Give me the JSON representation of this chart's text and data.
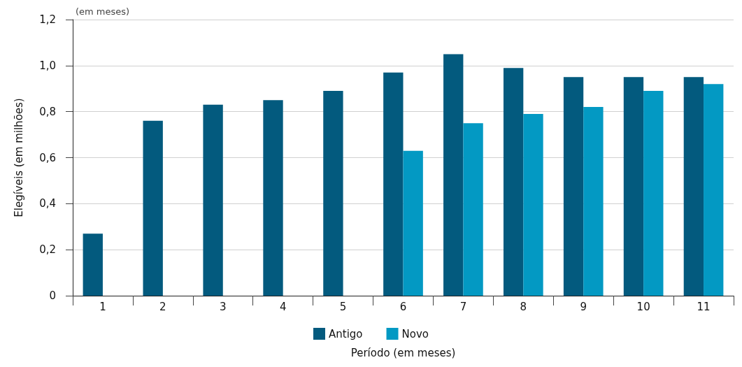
{
  "chart_data": {
    "type": "bar",
    "annotations": [
      "(em meses)"
    ],
    "xlabel": "Período (em meses)",
    "ylabel": "Elegíveis (em milhões)",
    "categories": [
      "1",
      "2",
      "3",
      "4",
      "5",
      "6",
      "7",
      "8",
      "9",
      "10",
      "11"
    ],
    "series": [
      {
        "name": "Antigo",
        "color": "#035a7e",
        "values": [
          0.27,
          0.76,
          0.83,
          0.85,
          0.89,
          0.97,
          1.05,
          0.99,
          0.95,
          0.95,
          0.95
        ]
      },
      {
        "name": "Novo",
        "color": "#0399c3",
        "values": [
          null,
          null,
          null,
          null,
          null,
          0.63,
          0.75,
          0.79,
          0.82,
          0.89,
          0.92
        ]
      }
    ],
    "ylim": [
      0,
      1.2
    ],
    "yticks": [
      {
        "value": 0,
        "label": "0"
      },
      {
        "value": 0.2,
        "label": "0,2"
      },
      {
        "value": 0.4,
        "label": "0,4"
      },
      {
        "value": 0.6,
        "label": "0,6"
      },
      {
        "value": 0.8,
        "label": "0,8"
      },
      {
        "value": 1.0,
        "label": "1,0"
      },
      {
        "value": 1.2,
        "label": "1,2"
      }
    ],
    "grid": "y",
    "legend": "bottom"
  }
}
